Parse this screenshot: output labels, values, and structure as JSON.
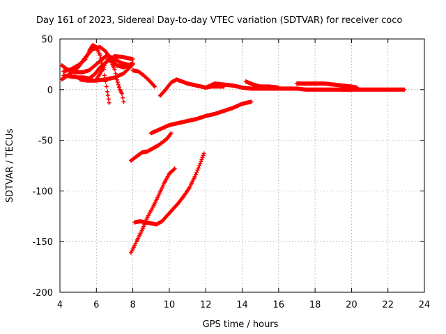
{
  "chart_data": {
    "type": "scatter",
    "title": "Day 161 of 2023, Sidereal Day-to-day VTEC variation (SDTVAR) for receiver coco",
    "xlabel": "GPS time / hours",
    "ylabel": "SDTVAR / TECUs",
    "xlim": [
      4,
      24
    ],
    "ylim": [
      -200,
      50
    ],
    "xticks": [
      4,
      6,
      8,
      10,
      12,
      14,
      16,
      18,
      20,
      22,
      24
    ],
    "yticks": [
      -200,
      -150,
      -100,
      -50,
      0,
      50
    ],
    "grid": true,
    "marker": "plus",
    "color": "#ff0000",
    "series": [
      {
        "values": [
          [
            4.1,
            10
          ],
          [
            4.5,
            15
          ],
          [
            5.0,
            22
          ],
          [
            5.4,
            32
          ],
          [
            5.8,
            40
          ],
          [
            6.2,
            42
          ],
          [
            6.5,
            38
          ],
          [
            6.8,
            30
          ],
          [
            7.1,
            24
          ],
          [
            7.5,
            22
          ],
          [
            8.0,
            26
          ]
        ]
      },
      {
        "values": [
          [
            4.2,
            14
          ],
          [
            4.6,
            13
          ],
          [
            5.0,
            12
          ],
          [
            5.3,
            12
          ],
          [
            5.6,
            11
          ],
          [
            5.9,
            15
          ],
          [
            6.2,
            22
          ],
          [
            6.6,
            28
          ],
          [
            7.0,
            33
          ],
          [
            7.5,
            32
          ],
          [
            8.0,
            30
          ]
        ]
      },
      {
        "values": [
          [
            4.1,
            24
          ],
          [
            4.4,
            20
          ],
          [
            4.8,
            17
          ],
          [
            5.2,
            17
          ],
          [
            5.6,
            19
          ],
          [
            6.0,
            25
          ],
          [
            6.3,
            30
          ],
          [
            6.6,
            34
          ],
          [
            7.0,
            30
          ],
          [
            7.4,
            26
          ],
          [
            7.9,
            24
          ]
        ]
      },
      {
        "values": [
          [
            4.2,
            18
          ],
          [
            4.6,
            20
          ],
          [
            5.0,
            24
          ],
          [
            5.4,
            30
          ],
          [
            5.6,
            38
          ],
          [
            5.8,
            44
          ],
          [
            6.0,
            42
          ],
          [
            6.2,
            34
          ],
          [
            6.4,
            20
          ],
          [
            6.5,
            8
          ],
          [
            6.6,
            -2
          ],
          [
            6.7,
            -13
          ]
        ]
      },
      {
        "values": [
          [
            6.0,
            10
          ],
          [
            6.4,
            22
          ],
          [
            6.6,
            30
          ],
          [
            6.8,
            28
          ],
          [
            7.0,
            20
          ],
          [
            7.1,
            12
          ],
          [
            7.2,
            5
          ],
          [
            7.3,
            0
          ],
          [
            7.4,
            -4
          ],
          [
            7.5,
            -12
          ]
        ]
      },
      {
        "values": [
          [
            5.1,
            10
          ],
          [
            5.5,
            9
          ],
          [
            6.0,
            9
          ],
          [
            6.5,
            10
          ],
          [
            7.0,
            12
          ],
          [
            7.5,
            16
          ],
          [
            8.0,
            25
          ]
        ]
      },
      {
        "values": [
          [
            8.0,
            19
          ],
          [
            8.3,
            18
          ],
          [
            8.6,
            14
          ],
          [
            8.9,
            9
          ],
          [
            9.2,
            3
          ]
        ]
      },
      {
        "values": [
          [
            9.5,
            -6
          ],
          [
            9.8,
            0
          ],
          [
            10.1,
            7
          ],
          [
            10.4,
            10
          ],
          [
            10.7,
            8
          ],
          [
            11.0,
            6
          ],
          [
            11.5,
            4
          ],
          [
            12.0,
            2
          ],
          [
            12.3,
            3
          ],
          [
            12.7,
            3
          ],
          [
            13.0,
            3
          ]
        ]
      },
      {
        "values": [
          [
            12.0,
            2
          ],
          [
            12.5,
            6
          ],
          [
            13.0,
            5
          ],
          [
            13.5,
            4
          ],
          [
            14.0,
            2
          ],
          [
            14.5,
            1
          ],
          [
            15.0,
            1
          ],
          [
            15.5,
            1
          ],
          [
            16.0,
            1
          ],
          [
            16.5,
            1
          ],
          [
            17.0,
            1
          ],
          [
            17.5,
            0
          ],
          [
            18.0,
            0
          ],
          [
            18.5,
            0
          ],
          [
            19.0,
            0
          ],
          [
            19.5,
            0
          ],
          [
            20.0,
            0
          ]
        ]
      },
      {
        "values": [
          [
            14.2,
            8
          ],
          [
            14.6,
            5
          ],
          [
            15.0,
            3
          ],
          [
            15.5,
            3
          ],
          [
            16.0,
            2
          ]
        ]
      },
      {
        "values": [
          [
            17.0,
            6
          ],
          [
            17.5,
            6
          ],
          [
            18.0,
            6
          ],
          [
            18.5,
            6
          ],
          [
            19.0,
            5
          ],
          [
            19.5,
            4
          ],
          [
            20.0,
            3
          ],
          [
            20.3,
            2
          ]
        ]
      },
      {
        "values": [
          [
            19.5,
            0
          ],
          [
            20.0,
            0
          ],
          [
            20.5,
            0
          ],
          [
            21.0,
            0
          ],
          [
            21.5,
            0
          ],
          [
            22.0,
            0
          ],
          [
            22.5,
            0
          ],
          [
            22.9,
            0
          ]
        ]
      },
      {
        "values": [
          [
            9.0,
            -43
          ],
          [
            9.5,
            -39
          ],
          [
            10.0,
            -35
          ],
          [
            10.5,
            -33
          ],
          [
            11.0,
            -31
          ],
          [
            11.5,
            -29
          ],
          [
            12.0,
            -26
          ],
          [
            12.5,
            -24
          ],
          [
            13.0,
            -21
          ],
          [
            13.5,
            -18
          ],
          [
            14.0,
            -14
          ],
          [
            14.5,
            -12
          ]
        ]
      },
      {
        "values": [
          [
            7.9,
            -70
          ],
          [
            8.2,
            -66
          ],
          [
            8.5,
            -62
          ],
          [
            8.8,
            -61
          ],
          [
            9.1,
            -58
          ],
          [
            9.4,
            -55
          ],
          [
            9.7,
            -51
          ],
          [
            9.9,
            -48
          ],
          [
            10.1,
            -43
          ]
        ]
      },
      {
        "values": [
          [
            7.9,
            -161
          ],
          [
            8.2,
            -150
          ],
          [
            8.5,
            -139
          ],
          [
            8.8,
            -126
          ],
          [
            9.1,
            -116
          ],
          [
            9.4,
            -105
          ],
          [
            9.7,
            -93
          ],
          [
            10.0,
            -83
          ],
          [
            10.3,
            -78
          ]
        ]
      },
      {
        "values": [
          [
            8.1,
            -131
          ],
          [
            8.4,
            -130
          ],
          [
            8.7,
            -131
          ],
          [
            9.0,
            -132
          ],
          [
            9.3,
            -133
          ],
          [
            9.6,
            -130
          ],
          [
            9.9,
            -124
          ],
          [
            10.2,
            -118
          ],
          [
            10.5,
            -112
          ],
          [
            10.8,
            -105
          ],
          [
            11.1,
            -97
          ],
          [
            11.4,
            -86
          ],
          [
            11.7,
            -73
          ],
          [
            11.9,
            -63
          ]
        ]
      }
    ]
  }
}
